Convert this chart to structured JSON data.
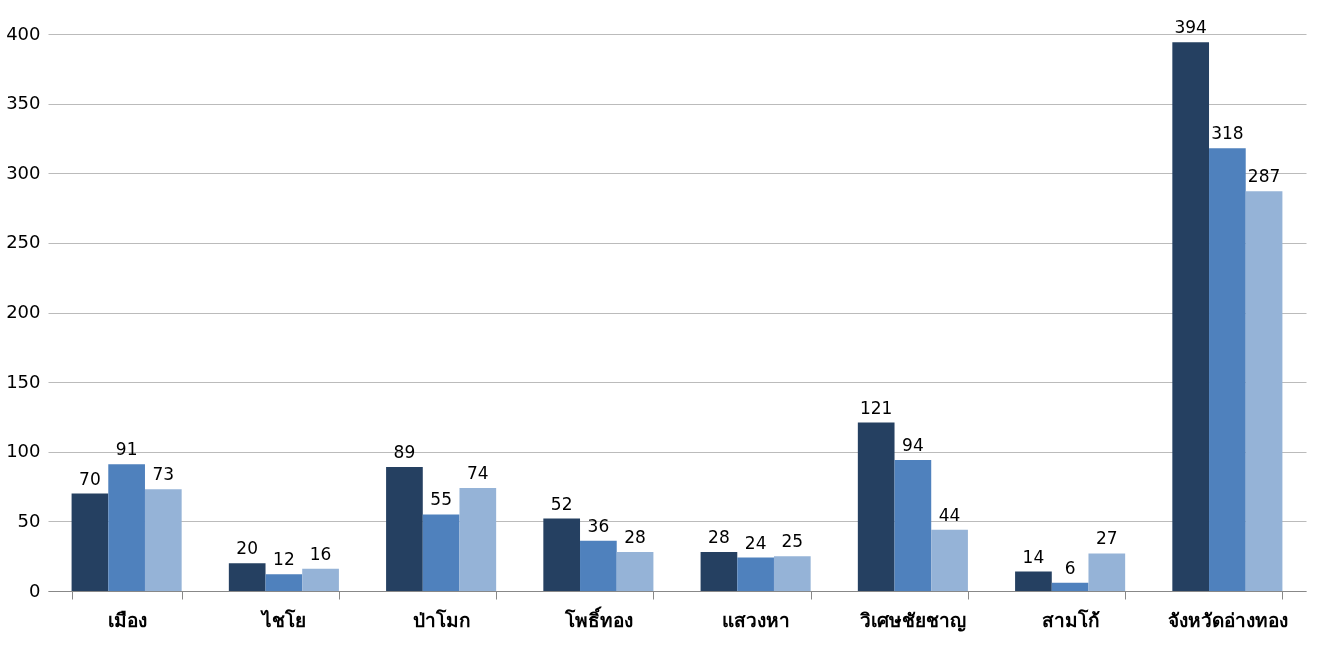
{
  "chart_data": {
    "type": "bar",
    "categories": [
      "เมือง",
      "ไชโย",
      "ป่าโมก",
      "โพธิ์ทอง",
      "แสวงหา",
      "วิเศษชัยชาญ",
      "สามโก้",
      "จังหวัดอ่างทอง"
    ],
    "series": [
      {
        "color": "#254061",
        "values": [
          70,
          20,
          89,
          52,
          28,
          121,
          14,
          394
        ]
      },
      {
        "color": "#4f81bd",
        "values": [
          91,
          12,
          55,
          36,
          24,
          94,
          6,
          318
        ]
      },
      {
        "color": "#95b3d7",
        "values": [
          73,
          16,
          74,
          28,
          25,
          44,
          27,
          287
        ]
      }
    ],
    "ylim": [
      0,
      400
    ],
    "yticks": [
      0,
      50,
      100,
      150,
      200,
      250,
      300,
      350,
      400
    ],
    "grid": "y",
    "data_labels": true,
    "legend": false
  }
}
